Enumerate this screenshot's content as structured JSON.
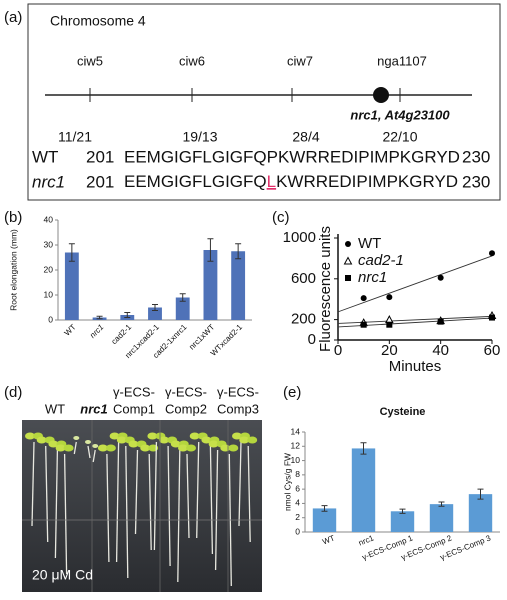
{
  "panel_labels": [
    "(a)",
    "(b)",
    "(c)",
    "(d)",
    "(e)"
  ],
  "panel_a": {
    "title": "Chromosome 4",
    "markers": [
      {
        "name": "ciw5",
        "ratio": "11/21"
      },
      {
        "name": "ciw6",
        "ratio": "19/13"
      },
      {
        "name": "ciw7",
        "ratio": "28/4"
      },
      {
        "name": "nga1107",
        "ratio": "22/10"
      }
    ],
    "gene": "nrc1, At4g23100",
    "sequences": [
      {
        "label": "WT",
        "start": "201",
        "segments": [
          "EEMGIGFLGIGFQPKWRREDIPIMPKGRYD"
        ],
        "end": "230"
      },
      {
        "label": "nrc1",
        "start": "201",
        "segments": [
          "EEMGIGFLGIGFQ",
          "L",
          "KWRREDIPIMPKGRYD"
        ],
        "end": "230"
      }
    ]
  },
  "panel_d": {
    "labels": [
      "WT",
      "nrc1",
      "γ-ECS-",
      "Comp1",
      "γ-ECS-",
      "Comp2",
      "γ-ECS-",
      "Comp3"
    ],
    "treatment": "20 μM Cd"
  },
  "chart_data": [
    {
      "type": "bar",
      "ylabel": "Root elongation (mm)",
      "categories": [
        "WT",
        "nrc1",
        "cad2-1",
        "nrc1xcad2-1",
        "cad2-1xnrc1",
        "nrc1xWT",
        "WTxcad2-1"
      ],
      "values": [
        27,
        1,
        2,
        5,
        9,
        28,
        27.5
      ],
      "errors": [
        3.5,
        0.5,
        1,
        1.2,
        1.5,
        4.5,
        3
      ],
      "color": "#4f72b8",
      "ylim": [
        0,
        40
      ],
      "yticks": [
        0,
        10,
        20,
        30,
        40
      ]
    },
    {
      "type": "scatter",
      "xlabel": "Minutes",
      "ylabel": "Fluorescence units",
      "series": [
        {
          "name": "WT",
          "marker": "circle",
          "color": "#000000",
          "x": [
            10,
            20,
            40,
            60
          ],
          "values": [
            410,
            420,
            610,
            850
          ]
        },
        {
          "name": "cad2-1",
          "marker": "triangle",
          "color": "#000000",
          "x": [
            10,
            20,
            40,
            60
          ],
          "values": [
            170,
            200,
            190,
            240
          ]
        },
        {
          "name": "nrc1",
          "marker": "square",
          "color": "#000000",
          "x": [
            10,
            20,
            40,
            60
          ],
          "values": [
            150,
            150,
            180,
            220
          ]
        }
      ],
      "trendline": true,
      "xlim": [
        0,
        60
      ],
      "xticks": [
        0,
        20,
        40,
        60
      ],
      "ylim": [
        0,
        1000
      ],
      "yticks": [
        0,
        200,
        600,
        1000
      ]
    },
    {
      "type": "bar",
      "title": "Cysteine",
      "ylabel": "nmol Cys/g FW",
      "categories": [
        "WT",
        "nrc1",
        "γ-ECS-Comp 1",
        "γ-ECS-Comp 2",
        "γ-ECS-Comp 3"
      ],
      "values": [
        3.3,
        11.7,
        2.9,
        3.9,
        5.3
      ],
      "errors": [
        0.4,
        0.8,
        0.3,
        0.3,
        0.7
      ],
      "color": "#5b9bd5",
      "ylim": [
        0,
        14
      ],
      "yticks": [
        0,
        2,
        4,
        6,
        8,
        10,
        12,
        14
      ]
    }
  ]
}
